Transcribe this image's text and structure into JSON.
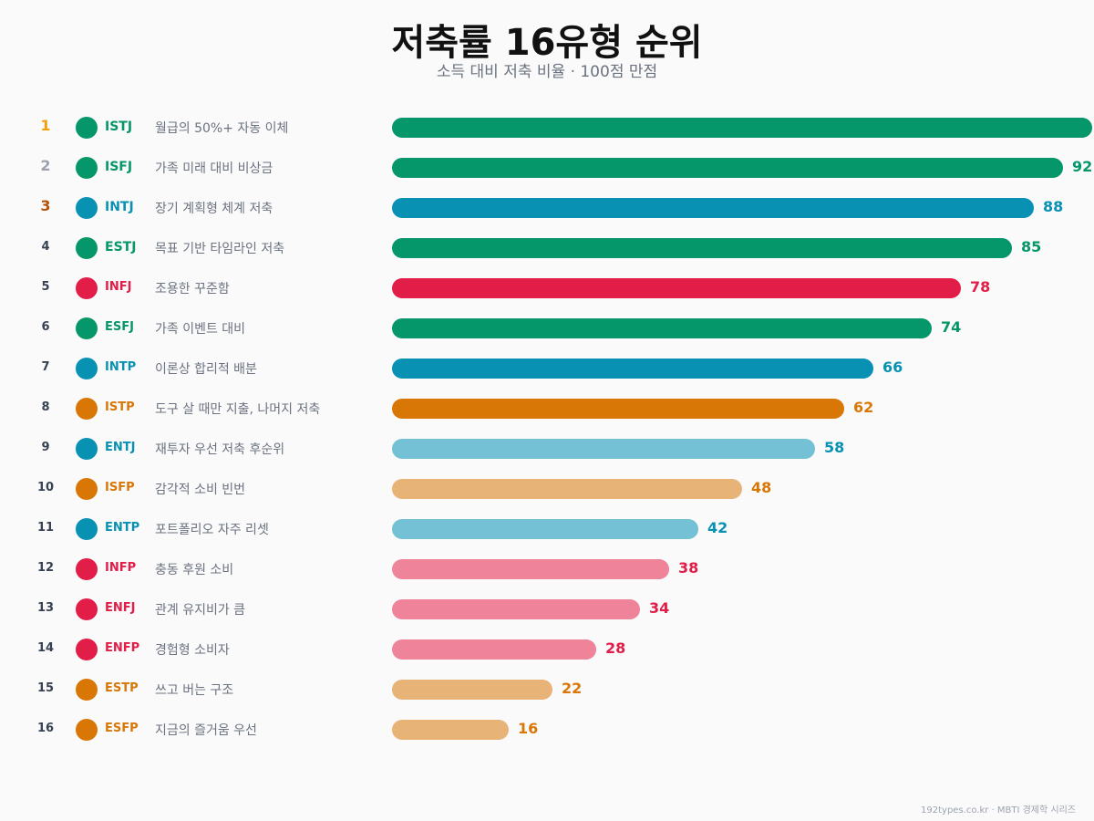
{
  "title": "저축률 16유형 순위",
  "subtitle": "소득 대비 저축 비율 · 100점 만점",
  "footer": "192types.co.kr · MBTI 경제학 시리즈",
  "colors": {
    "green": "#059669",
    "blue": "#0891b2",
    "red": "#e11d48",
    "orange": "#d97706",
    "light_blue": "#74c0d4",
    "light_orange": "#e8b377",
    "light_red": "#ee8399",
    "rank1": "#f59e0b",
    "rank2": "#9ca3af",
    "rank3": "#b45309"
  },
  "chart_data": {
    "type": "bar",
    "orientation": "horizontal",
    "xlim": [
      0,
      100
    ],
    "grid": false,
    "title": "저축률 16유형 순위",
    "subtitle": "소득 대비 저축 비율 · 100점 만점",
    "rows": [
      {
        "rank": "1",
        "type": "ISTJ",
        "desc": "월급의 50%+ 자동 이체",
        "value": 96,
        "color": "#059669",
        "label_color": "#059669"
      },
      {
        "rank": "2",
        "type": "ISFJ",
        "desc": "가족 미래 대비 비상금",
        "value": 92,
        "color": "#059669",
        "label_color": "#059669"
      },
      {
        "rank": "3",
        "type": "INTJ",
        "desc": "장기 계획형 체계 저축",
        "value": 88,
        "color": "#0891b2",
        "label_color": "#0891b2"
      },
      {
        "rank": "4",
        "type": "ESTJ",
        "desc": "목표 기반 타임라인 저축",
        "value": 85,
        "color": "#059669",
        "label_color": "#059669"
      },
      {
        "rank": "5",
        "type": "INFJ",
        "desc": "조용한 꾸준함",
        "value": 78,
        "color": "#e11d48",
        "label_color": "#e11d48"
      },
      {
        "rank": "6",
        "type": "ESFJ",
        "desc": "가족 이벤트 대비",
        "value": 74,
        "color": "#059669",
        "label_color": "#059669"
      },
      {
        "rank": "7",
        "type": "INTP",
        "desc": "이론상 합리적 배분",
        "value": 66,
        "color": "#0891b2",
        "label_color": "#0891b2"
      },
      {
        "rank": "8",
        "type": "ISTP",
        "desc": "도구 살 때만 지출, 나머지 저축",
        "value": 62,
        "color": "#d97706",
        "label_color": "#d97706"
      },
      {
        "rank": "9",
        "type": "ENTJ",
        "desc": "재투자 우선 저축 후순위",
        "value": 58,
        "color": "#74c0d4",
        "label_color": "#0891b2"
      },
      {
        "rank": "10",
        "type": "ISFP",
        "desc": "감각적 소비 빈번",
        "value": 48,
        "color": "#e8b377",
        "label_color": "#d97706"
      },
      {
        "rank": "11",
        "type": "ENTP",
        "desc": "포트폴리오 자주 리셋",
        "value": 42,
        "color": "#74c0d4",
        "label_color": "#0891b2"
      },
      {
        "rank": "12",
        "type": "INFP",
        "desc": "충동 후원 소비",
        "value": 38,
        "color": "#ee8399",
        "label_color": "#e11d48"
      },
      {
        "rank": "13",
        "type": "ENFJ",
        "desc": "관계 유지비가 큼",
        "value": 34,
        "color": "#ee8399",
        "label_color": "#e11d48"
      },
      {
        "rank": "14",
        "type": "ENFP",
        "desc": "경험형 소비자",
        "value": 28,
        "color": "#ee8399",
        "label_color": "#e11d48"
      },
      {
        "rank": "15",
        "type": "ESTP",
        "desc": "쓰고 버는 구조",
        "value": 22,
        "color": "#e8b377",
        "label_color": "#d97706"
      },
      {
        "rank": "16",
        "type": "ESFP",
        "desc": "지금의 즐거움 우선",
        "value": 16,
        "color": "#e8b377",
        "label_color": "#d97706"
      }
    ]
  }
}
